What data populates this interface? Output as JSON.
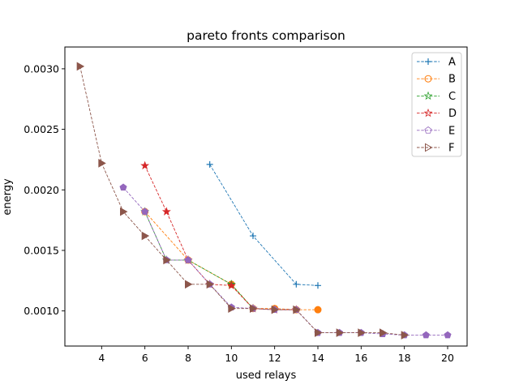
{
  "chart_data": {
    "type": "line",
    "title": "pareto fronts comparison",
    "xlabel": "used relays",
    "ylabel": "energy",
    "xlim": [
      2.3,
      20.9
    ],
    "ylim": [
      0.00071,
      0.00318
    ],
    "xticks": [
      4,
      6,
      8,
      10,
      12,
      14,
      16,
      18,
      20
    ],
    "yticks": [
      0.001,
      0.0015,
      0.002,
      0.0025,
      0.003
    ],
    "ytick_labels": [
      "0.0010",
      "0.0015",
      "0.0020",
      "0.0025",
      "0.0030"
    ],
    "grid": false,
    "legend": "top-right",
    "series": [
      {
        "name": "A",
        "color": "#1f77b4",
        "marker": "plus",
        "x": [
          9,
          11,
          13,
          14
        ],
        "y": [
          0.00221,
          0.00162,
          0.00122,
          0.00121
        ]
      },
      {
        "name": "B",
        "color": "#ff7f0e",
        "marker": "circle",
        "x": [
          6,
          8,
          10,
          11,
          12,
          13,
          14
        ],
        "y": [
          0.00182,
          0.00142,
          0.00122,
          0.00102,
          0.00102,
          0.00101,
          0.00101
        ]
      },
      {
        "name": "C",
        "color": "#2ca02c",
        "marker": "star",
        "x": [
          6,
          7,
          8,
          10,
          11
        ],
        "y": [
          0.00182,
          0.00142,
          0.00142,
          0.00122,
          0.00102
        ]
      },
      {
        "name": "D",
        "color": "#d62728",
        "marker": "star",
        "x": [
          6,
          7,
          8,
          9,
          10,
          11,
          12,
          13
        ],
        "y": [
          0.0022,
          0.00182,
          0.00142,
          0.00122,
          0.00121,
          0.00102,
          0.00101,
          0.00101
        ]
      },
      {
        "name": "E",
        "color": "#9467bd",
        "marker": "pentagon",
        "x": [
          5,
          6,
          7,
          8,
          9,
          10,
          11,
          12,
          13,
          14,
          15,
          16,
          17,
          18,
          19,
          20
        ],
        "y": [
          0.00202,
          0.00182,
          0.00142,
          0.00142,
          0.00122,
          0.00103,
          0.00102,
          0.00101,
          0.00101,
          0.00082,
          0.00082,
          0.00082,
          0.00081,
          0.0008,
          0.0008,
          0.0008
        ]
      },
      {
        "name": "F",
        "color": "#8c564b",
        "marker": "triangle-right",
        "x": [
          3,
          4,
          5,
          6,
          7,
          8,
          9,
          10,
          11,
          12,
          13,
          14,
          15,
          16,
          17,
          18
        ],
        "y": [
          0.00302,
          0.00222,
          0.00182,
          0.00162,
          0.00142,
          0.00122,
          0.00122,
          0.00102,
          0.00102,
          0.00101,
          0.00101,
          0.00082,
          0.00082,
          0.00082,
          0.00082,
          0.0008
        ]
      }
    ]
  }
}
